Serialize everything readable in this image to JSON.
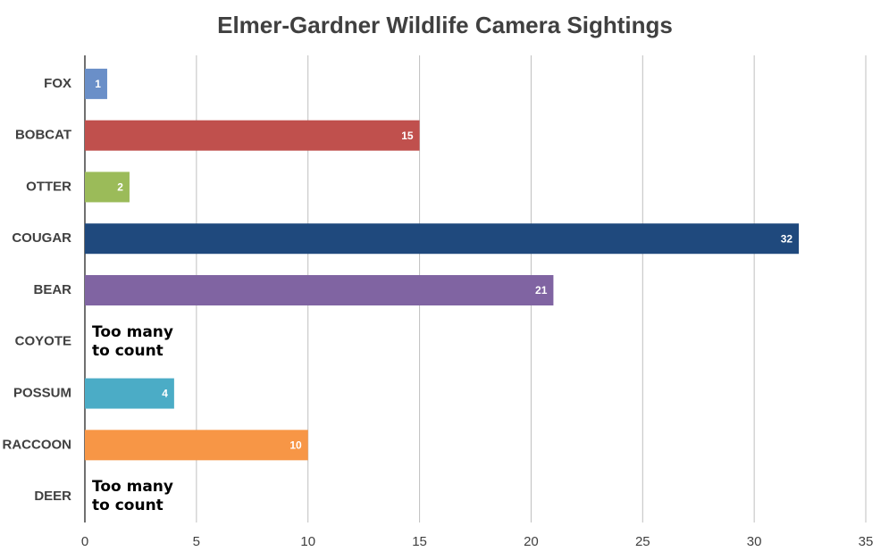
{
  "chart_data": {
    "type": "bar",
    "orientation": "horizontal",
    "title": "Elmer-Gardner Wildlife Camera Sightings",
    "categories": [
      "FOX",
      "BOBCAT",
      "OTTER",
      "COUGAR",
      "BEAR",
      "COYOTE",
      "POSSUM",
      "RACCOON",
      "DEER"
    ],
    "values": [
      1,
      15,
      2,
      32,
      21,
      null,
      4,
      10,
      null
    ],
    "value_labels": [
      "1",
      "15",
      "2",
      "32",
      "21",
      "Too many\nto count",
      "4",
      "10",
      "Too many\nto count"
    ],
    "colors": [
      "#6a8fc8",
      "#c0504d",
      "#9bbb59",
      "#1f497d",
      "#8064a2",
      null,
      "#4bacc6",
      "#f79646",
      null
    ],
    "xlim": [
      0,
      35
    ],
    "xticks": [
      0,
      5,
      10,
      15,
      20,
      25,
      30,
      35
    ],
    "grid": true
  }
}
